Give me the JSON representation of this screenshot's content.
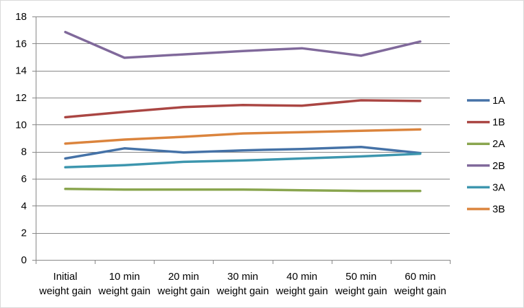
{
  "chart_data": {
    "type": "line",
    "categories": [
      [
        "Initial",
        "weight gain"
      ],
      [
        "10 min",
        "weight gain"
      ],
      [
        "20 min",
        "weight gain"
      ],
      [
        "30 min",
        "weight gain"
      ],
      [
        "40 min",
        "weight gain"
      ],
      [
        "50 min",
        "weight gain"
      ],
      [
        "60 min",
        "weight gain"
      ]
    ],
    "ylim": [
      0,
      18
    ],
    "yticks": [
      0,
      2,
      4,
      6,
      8,
      10,
      12,
      14,
      16,
      18
    ],
    "grid": true,
    "legend_position": "right",
    "title": "",
    "xlabel": "",
    "ylabel": "",
    "series": [
      {
        "name": "1A",
        "color": "#4572A7",
        "values": [
          7.5,
          8.25,
          7.95,
          8.1,
          8.2,
          8.35,
          7.9
        ]
      },
      {
        "name": "1B",
        "color": "#AA4643",
        "values": [
          10.55,
          10.95,
          11.3,
          11.45,
          11.4,
          11.8,
          11.75
        ]
      },
      {
        "name": "2A",
        "color": "#89A54E",
        "values": [
          5.25,
          5.2,
          5.2,
          5.2,
          5.15,
          5.1,
          5.1
        ]
      },
      {
        "name": "2B",
        "color": "#80699B",
        "values": [
          16.85,
          14.95,
          15.2,
          15.45,
          15.65,
          15.1,
          16.15
        ]
      },
      {
        "name": "3A",
        "color": "#3D96AE",
        "values": [
          6.85,
          7.0,
          7.25,
          7.35,
          7.5,
          7.65,
          7.85
        ]
      },
      {
        "name": "3B",
        "color": "#DB843D",
        "values": [
          8.6,
          8.9,
          9.1,
          9.35,
          9.45,
          9.55,
          9.65
        ]
      }
    ]
  }
}
